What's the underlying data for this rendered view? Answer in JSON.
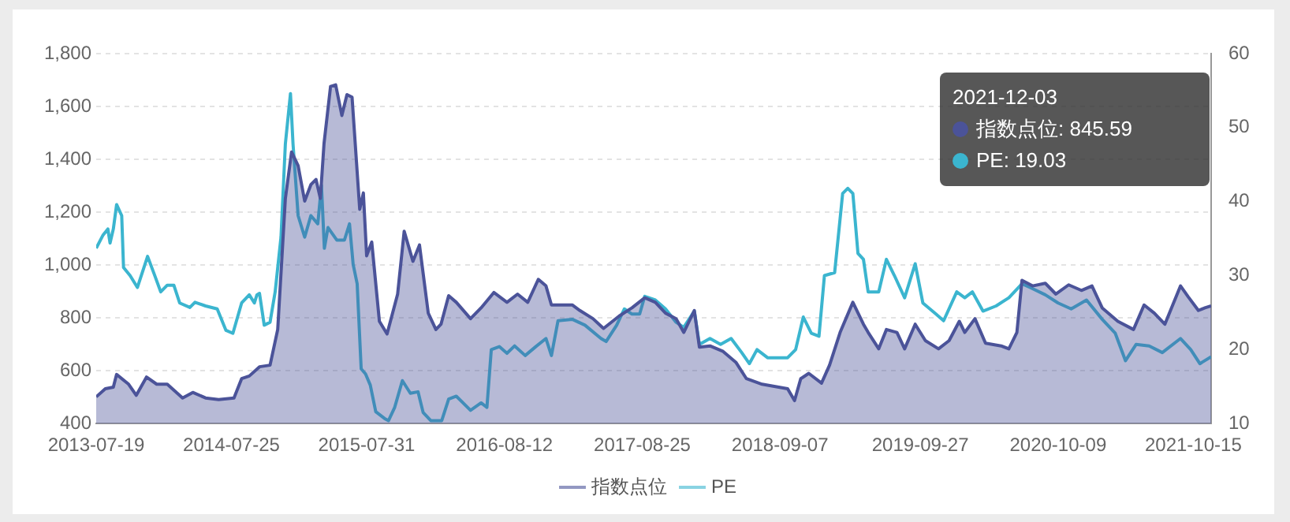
{
  "chart_data": {
    "type": "area",
    "xlim": [
      "2013-07-19",
      "2021-12-03"
    ],
    "xticks": [
      "2013-07-19",
      "2014-07-25",
      "2015-07-31",
      "2016-08-12",
      "2017-08-25",
      "2018-09-07",
      "2019-09-27",
      "2020-10-09",
      "2021-10-15"
    ],
    "ylim": [
      400,
      1800
    ],
    "yticks": [
      400,
      600,
      800,
      {
        "value": 1000,
        "label": "1,000"
      },
      {
        "value": 1200,
        "label": "1,200"
      },
      {
        "value": 1400,
        "label": "1,400"
      },
      {
        "value": 1600,
        "label": "1,600"
      },
      {
        "value": 1800,
        "label": "1,800"
      }
    ],
    "y2lim": [
      10,
      60
    ],
    "y2ticks": [
      10,
      20,
      30,
      40,
      50,
      60
    ],
    "grid": "y",
    "legend": "bottom",
    "marker": "none",
    "line_style": "solid",
    "annotations": [
      "2021-12-03",
      "指数点位: 845.59",
      "PE: 19.03"
    ],
    "series": [
      {
        "name": "指数点位",
        "color": "#4b5399",
        "x": [
          "2013-07-19",
          "2013-08-13",
          "2013-09-04",
          "2013-09-13",
          "2013-10-16",
          "2013-11-06",
          "2013-12-04",
          "2014-01-01",
          "2014-01-30",
          "2014-03-13",
          "2014-04-10",
          "2014-05-15",
          "2014-06-20",
          "2014-08-01",
          "2014-08-22",
          "2014-09-12",
          "2014-10-10",
          "2014-11-08",
          "2014-11-29",
          "2014-12-20",
          "2015-01-06",
          "2015-01-24",
          "2015-02-11",
          "2015-02-28",
          "2015-03-14",
          "2015-03-26",
          "2015-04-05",
          "2015-04-23",
          "2015-05-07",
          "2015-05-24",
          "2015-06-07",
          "2015-06-21",
          "2015-07-12",
          "2015-07-22",
          "2015-07-31",
          "2015-08-14",
          "2015-09-04",
          "2015-09-25",
          "2015-10-24",
          "2015-11-11",
          "2015-12-05",
          "2015-12-23",
          "2016-01-16",
          "2016-02-06",
          "2016-02-20",
          "2016-03-12",
          "2016-04-02",
          "2016-05-11",
          "2016-06-09",
          "2016-07-14",
          "2016-08-19",
          "2016-09-17",
          "2016-10-15",
          "2016-11-13",
          "2016-12-04",
          "2016-12-19",
          "2017-02-14",
          "2017-03-07",
          "2017-04-12",
          "2017-05-11",
          "2017-06-23",
          "2017-07-28",
          "2017-09-01",
          "2017-09-30",
          "2017-10-28",
          "2017-11-26",
          "2017-12-17",
          "2018-01-15",
          "2018-01-29",
          "2018-02-27",
          "2018-04-04",
          "2018-05-09",
          "2018-06-07",
          "2018-07-20",
          "2018-09-28",
          "2018-10-17",
          "2018-11-03",
          "2018-11-25",
          "2018-12-30",
          "2019-01-21",
          "2019-02-19",
          "2019-03-26",
          "2019-04-24",
          "2019-05-07",
          "2019-06-05",
          "2019-06-26",
          "2019-07-25",
          "2019-08-15",
          "2019-09-13",
          "2019-10-11",
          "2019-11-16",
          "2019-12-15",
          "2020-01-12",
          "2020-01-27",
          "2020-02-24",
          "2020-03-24",
          "2020-05-06",
          "2020-05-27",
          "2020-06-18",
          "2020-07-02",
          "2020-07-31",
          "2020-09-04",
          "2020-10-03",
          "2020-11-07",
          "2020-12-12",
          "2021-01-10",
          "2021-02-07",
          "2021-03-22",
          "2021-05-04",
          "2021-06-02",
          "2021-06-30",
          "2021-07-29",
          "2021-09-10",
          "2021-10-01",
          "2021-10-29",
          "2021-11-16",
          "2021-12-03"
        ],
        "values": [
          501,
          532,
          538,
          586,
          549,
          507,
          576,
          549,
          549,
          497,
          518,
          497,
          491,
          497,
          570,
          580,
          615,
          621,
          756,
          1252,
          1428,
          1376,
          1242,
          1304,
          1324,
          1252,
          1459,
          1676,
          1682,
          1566,
          1645,
          1635,
          1211,
          1273,
          1035,
          1087,
          787,
          739,
          890,
          1128,
          1014,
          1076,
          818,
          756,
          776,
          884,
          859,
          797,
          838,
          896,
          859,
          890,
          859,
          946,
          921,
          849,
          849,
          828,
          797,
          760,
          807,
          838,
          876,
          859,
          818,
          797,
          745,
          828,
          689,
          694,
          673,
          632,
          570,
          549,
          532,
          487,
          570,
          590,
          553,
          621,
          745,
          859,
          776,
          745,
          683,
          756,
          745,
          683,
          776,
          714,
          683,
          714,
          787,
          745,
          797,
          704,
          694,
          683,
          745,
          942,
          921,
          931,
          890,
          925,
          904,
          921,
          838,
          787,
          756,
          849,
          818,
          776,
          921,
          880,
          828,
          838,
          845.59
        ]
      },
      {
        "name": "PE",
        "type": "line",
        "axis": "y2",
        "color": "#3bb5cf",
        "x": [
          "2013-07-19",
          "2013-08-07",
          "2013-08-20",
          "2013-08-26",
          "2013-09-04",
          "2013-09-13",
          "2013-09-27",
          "2013-10-02",
          "2013-10-20",
          "2013-11-09",
          "2013-12-07",
          "2013-12-26",
          "2014-01-12",
          "2014-01-30",
          "2014-02-17",
          "2014-03-05",
          "2014-04-02",
          "2014-04-16",
          "2014-05-15",
          "2014-06-16",
          "2014-07-10",
          "2014-07-29",
          "2014-08-22",
          "2014-09-12",
          "2014-09-26",
          "2014-10-03",
          "2014-10-10",
          "2014-10-23",
          "2014-11-08",
          "2014-11-22",
          "2014-12-08",
          "2014-12-20",
          "2015-01-03",
          "2015-01-10",
          "2015-01-24",
          "2015-02-11",
          "2015-02-28",
          "2015-03-19",
          "2015-03-29",
          "2015-04-06",
          "2015-04-16",
          "2015-05-10",
          "2015-05-31",
          "2015-06-14",
          "2015-06-24",
          "2015-07-05",
          "2015-07-16",
          "2015-07-28",
          "2015-08-10",
          "2015-08-25",
          "2015-09-18",
          "2015-09-29",
          "2015-10-16",
          "2015-11-06",
          "2015-11-28",
          "2015-12-19",
          "2016-01-02",
          "2016-01-23",
          "2016-02-22",
          "2016-03-12",
          "2016-04-02",
          "2016-05-11",
          "2016-06-09",
          "2016-06-25",
          "2016-07-07",
          "2016-07-29",
          "2016-08-19",
          "2016-09-09",
          "2016-10-08",
          "2016-11-06",
          "2016-12-04",
          "2016-12-19",
          "2017-01-06",
          "2017-02-14",
          "2017-03-21",
          "2017-05-04",
          "2017-05-18",
          "2017-06-16",
          "2017-07-07",
          "2017-07-28",
          "2017-08-18",
          "2017-09-01",
          "2017-09-30",
          "2017-10-28",
          "2017-11-26",
          "2017-12-17",
          "2018-01-15",
          "2018-01-29",
          "2018-02-27",
          "2018-03-28",
          "2018-04-26",
          "2018-05-25",
          "2018-06-15",
          "2018-07-06",
          "2018-08-04",
          "2018-09-28",
          "2018-10-20",
          "2018-11-10",
          "2018-12-02",
          "2018-12-23",
          "2019-01-07",
          "2019-02-04",
          "2019-02-26",
          "2019-03-12",
          "2019-03-26",
          "2019-04-09",
          "2019-04-24",
          "2019-05-07",
          "2019-06-05",
          "2019-06-26",
          "2019-07-18",
          "2019-08-15",
          "2019-09-13",
          "2019-10-04",
          "2019-11-09",
          "2019-11-30",
          "2020-01-05",
          "2020-01-27",
          "2020-02-17",
          "2020-03-17",
          "2020-04-22",
          "2020-05-27",
          "2020-07-02",
          "2020-07-24",
          "2020-09-04",
          "2020-10-09",
          "2020-11-14",
          "2020-12-26",
          "2021-02-07",
          "2021-03-15",
          "2021-04-12",
          "2021-05-11",
          "2021-06-16",
          "2021-07-22",
          "2021-09-10",
          "2021-10-08",
          "2021-11-02",
          "2021-12-03"
        ],
        "values": [
          33.7,
          35.5,
          36.3,
          34.4,
          36.3,
          39.6,
          38.1,
          31.1,
          30.0,
          28.4,
          32.6,
          30.1,
          27.8,
          28.7,
          28.7,
          26.3,
          25.7,
          26.4,
          25.9,
          25.5,
          22.6,
          22.2,
          26.3,
          27.4,
          26.3,
          27.4,
          27.6,
          23.3,
          23.7,
          27.8,
          35.2,
          47.8,
          54.6,
          47.8,
          38.1,
          35.2,
          38.1,
          37.0,
          42.2,
          33.7,
          36.5,
          34.8,
          34.8,
          37.0,
          31.5,
          28.9,
          17.4,
          16.7,
          15.2,
          11.6,
          10.7,
          10.4,
          12.2,
          15.8,
          14.1,
          14.3,
          11.5,
          10.4,
          10.4,
          13.3,
          13.7,
          11.8,
          12.8,
          12.2,
          20.0,
          20.4,
          19.5,
          20.5,
          19.2,
          20.4,
          21.5,
          19.2,
          23.9,
          24.1,
          23.3,
          21.5,
          21.1,
          23.3,
          25.5,
          24.8,
          24.8,
          27.2,
          26.7,
          25.5,
          23.7,
          23.0,
          25.2,
          20.7,
          21.5,
          20.7,
          21.5,
          19.6,
          18.1,
          20.0,
          18.9,
          18.9,
          20.0,
          24.4,
          22.2,
          21.8,
          30.0,
          30.4,
          41.1,
          41.8,
          41.1,
          33.0,
          32.2,
          27.8,
          27.8,
          32.2,
          30.0,
          27.0,
          31.6,
          26.3,
          24.8,
          23.9,
          27.8,
          27.0,
          27.8,
          25.2,
          25.9,
          27.0,
          28.9,
          28.4,
          27.4,
          26.3,
          25.5,
          26.7,
          24.1,
          22.2,
          18.5,
          20.7,
          20.5,
          19.6,
          21.5,
          20.0,
          18.1,
          19.03
        ]
      }
    ]
  }
}
